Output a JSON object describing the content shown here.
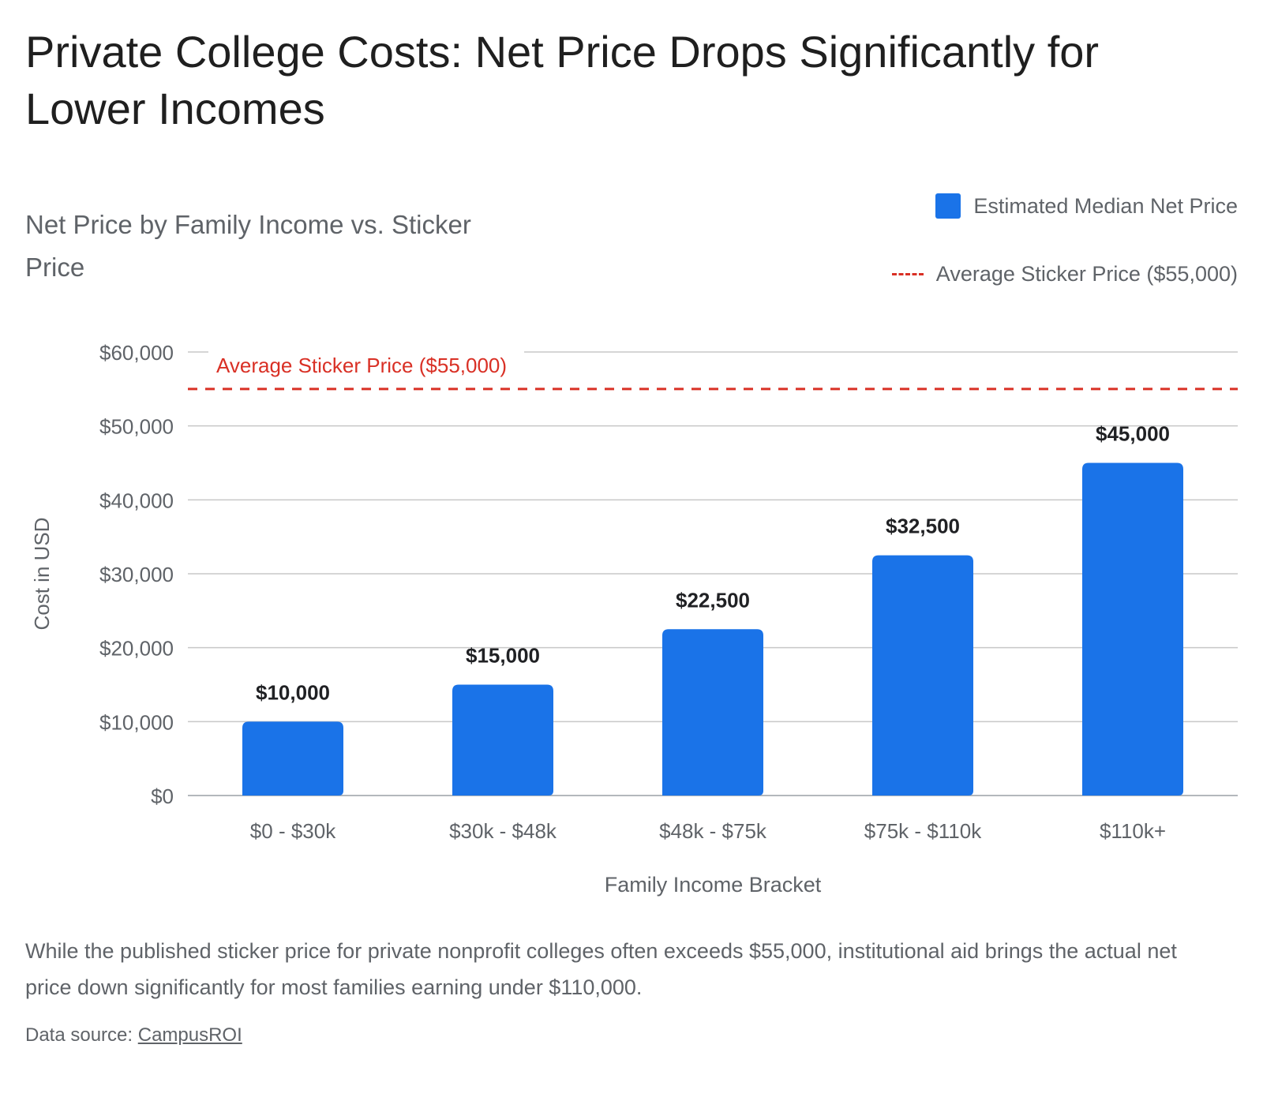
{
  "title": "Private College Costs: Net Price Drops Significantly for Lower Incomes",
  "subtitle": "Net Price by Family Income vs. Sticker Price",
  "legend": {
    "bar_label": "Estimated Median Net Price",
    "line_label": "Average Sticker Price ($55,000)"
  },
  "colors": {
    "bar": "#1a73e8",
    "reference_line": "#d93025",
    "grid": "#c8c8c8"
  },
  "chart_data": {
    "type": "bar",
    "title": "Net Price by Family Income vs. Sticker Price",
    "xlabel": "Family Income Bracket",
    "ylabel": "Cost in USD",
    "categories": [
      "$0 - $30k",
      "$30k - $48k",
      "$48k - $75k",
      "$75k - $110k",
      "$110k+"
    ],
    "series": [
      {
        "name": "Estimated Median Net Price",
        "values": [
          10000,
          15000,
          22500,
          32500,
          45000
        ]
      }
    ],
    "value_labels": [
      "$10,000",
      "$15,000",
      "$22,500",
      "$32,500",
      "$45,000"
    ],
    "ylim": [
      0,
      60000
    ],
    "yticks": [
      0,
      10000,
      20000,
      30000,
      40000,
      50000,
      60000
    ],
    "ytick_labels": [
      "$0",
      "$10,000",
      "$20,000",
      "$30,000",
      "$40,000",
      "$50,000",
      "$60,000"
    ],
    "reference_line": {
      "value": 55000,
      "label": "Average Sticker Price ($55,000)"
    },
    "grid": true,
    "legend_position": "top-right"
  },
  "description": "While the published sticker price for private nonprofit colleges often exceeds $55,000, institutional aid brings the actual net price down significantly for most families earning under $110,000.",
  "source": {
    "prefix": "Data source: ",
    "link_text": "CampusROI"
  }
}
